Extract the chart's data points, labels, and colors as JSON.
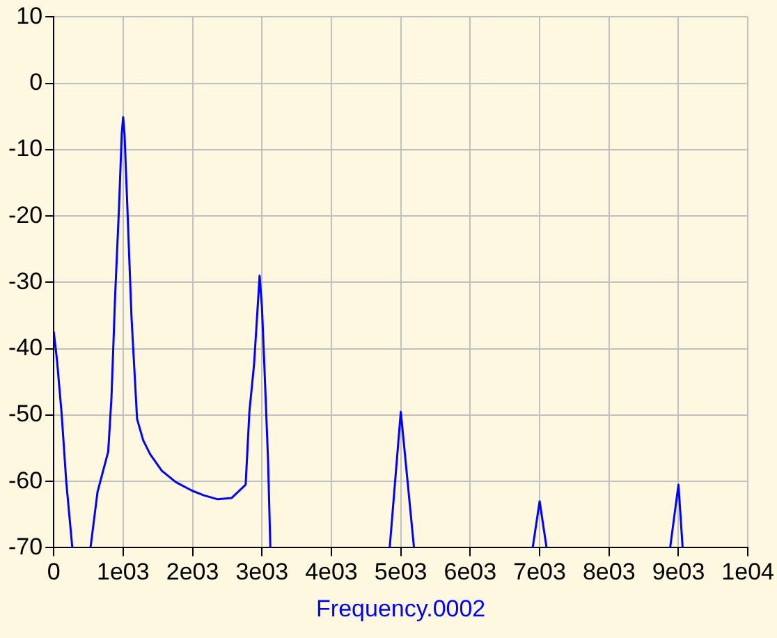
{
  "chart_data": {
    "type": "line",
    "xlabel": "Frequency.0002",
    "xlim": [
      0,
      10000
    ],
    "xticks": [
      0,
      {
        "value": 1000,
        "label": "1e03"
      },
      {
        "value": 2000,
        "label": "2e03"
      },
      {
        "value": 3000,
        "label": "3e03"
      },
      {
        "value": 4000,
        "label": "4e03"
      },
      {
        "value": 5000,
        "label": "5e03"
      },
      {
        "value": 6000,
        "label": "6e03"
      },
      {
        "value": 7000,
        "label": "7e03"
      },
      {
        "value": 8000,
        "label": "8e03"
      },
      {
        "value": 9000,
        "label": "9e03"
      },
      {
        "value": 10000,
        "label": "1e04"
      }
    ],
    "ylim": [
      -70,
      10
    ],
    "yticks": [
      -70,
      -60,
      -50,
      -40,
      -30,
      -20,
      -10,
      0,
      10
    ],
    "grid": true,
    "series": [
      {
        "color": "#0000ff",
        "x": [
          0,
          47,
          114,
          181,
          268,
          400,
          530,
          631,
          785,
          832,
          886,
          940,
          980,
          1000,
          1020,
          1054,
          1121,
          1201,
          1289,
          1389,
          1557,
          1758,
          1993,
          2161,
          2362,
          2564,
          2765,
          2819,
          2886,
          2933,
          2966,
          3000,
          3034,
          3087,
          3121,
          4000,
          4840,
          5000,
          5190,
          6000,
          6900,
          7000,
          7100,
          8000,
          8880,
          9000,
          9060
        ],
        "values": [
          -37.4,
          -41.7,
          -49.8,
          -60.1,
          -70,
          null,
          -70,
          -61.6,
          -55.5,
          -47.4,
          -31.7,
          -18.9,
          -7.6,
          -5.1,
          -7.6,
          -16.8,
          -35.3,
          -50.6,
          -53.8,
          -55.9,
          -58.4,
          -60.1,
          -61.4,
          -62.1,
          -62.7,
          -62.5,
          -60.5,
          -49.5,
          -42.4,
          -34.6,
          -29,
          -33.8,
          -42.4,
          -56.6,
          -70,
          null,
          -70,
          -49.5,
          -70,
          null,
          -70,
          -63,
          -70,
          null,
          -70,
          -60.5,
          -70
        ]
      }
    ]
  }
}
